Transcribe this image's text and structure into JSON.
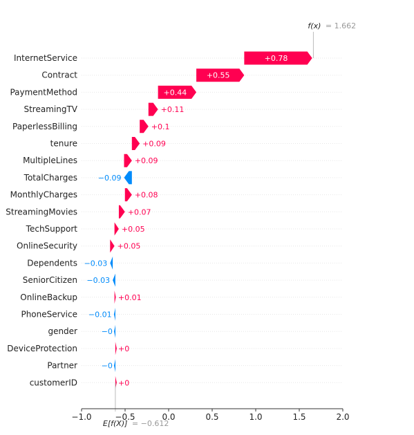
{
  "colors": {
    "positive": "#ff0051",
    "negative": "#008bfb",
    "axis": "#333333",
    "grid": "#cccccc",
    "muted": "#999999"
  },
  "chart_data": {
    "type": "waterfall",
    "title": "",
    "xlabel": "",
    "xlim": [
      -1.0,
      2.0
    ],
    "xticks": [
      -1.0,
      -0.5,
      0.0,
      0.5,
      1.0,
      1.5,
      2.0
    ],
    "xtick_labels": [
      "−1.0",
      "−0.5",
      "0.0",
      "0.5",
      "1.0",
      "1.5",
      "2.0"
    ],
    "base_value": -0.612,
    "base_label": "E[f(X)] = −0.612",
    "base_label_prefix": "E[f(X)]",
    "base_label_value": "= −0.612",
    "output_value": 1.662,
    "output_label": "f(x) = 1.662",
    "output_label_prefix": "f(x)",
    "output_label_value": "= 1.662",
    "features": [
      {
        "name": "InternetService",
        "value": 0.78,
        "label": "+0.78"
      },
      {
        "name": "Contract",
        "value": 0.55,
        "label": "+0.55"
      },
      {
        "name": "PaymentMethod",
        "value": 0.44,
        "label": "+0.44"
      },
      {
        "name": "StreamingTV",
        "value": 0.11,
        "label": "+0.11"
      },
      {
        "name": "PaperlessBilling",
        "value": 0.1,
        "label": "+0.1"
      },
      {
        "name": "tenure",
        "value": 0.09,
        "label": "+0.09"
      },
      {
        "name": "MultipleLines",
        "value": 0.09,
        "label": "+0.09"
      },
      {
        "name": "TotalCharges",
        "value": -0.09,
        "label": "−0.09"
      },
      {
        "name": "MonthlyCharges",
        "value": 0.08,
        "label": "+0.08"
      },
      {
        "name": "StreamingMovies",
        "value": 0.07,
        "label": "+0.07"
      },
      {
        "name": "TechSupport",
        "value": 0.05,
        "label": "+0.05"
      },
      {
        "name": "OnlineSecurity",
        "value": 0.05,
        "label": "+0.05"
      },
      {
        "name": "Dependents",
        "value": -0.03,
        "label": "−0.03"
      },
      {
        "name": "SeniorCitizen",
        "value": -0.03,
        "label": "−0.03"
      },
      {
        "name": "OnlineBackup",
        "value": 0.01,
        "label": "+0.01"
      },
      {
        "name": "PhoneService",
        "value": -0.01,
        "label": "−0.01"
      },
      {
        "name": "gender",
        "value": -0.001,
        "label": "−0"
      },
      {
        "name": "DeviceProtection",
        "value": 0.001,
        "label": "+0"
      },
      {
        "name": "Partner",
        "value": -0.001,
        "label": "−0"
      },
      {
        "name": "customerID",
        "value": 0.001,
        "label": "+0"
      }
    ]
  }
}
